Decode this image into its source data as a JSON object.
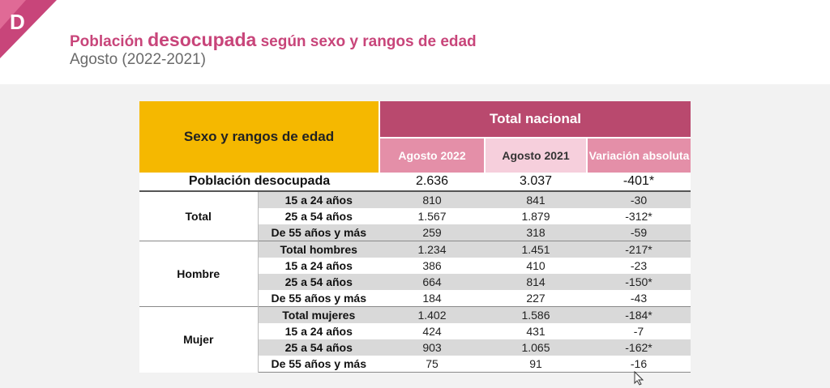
{
  "header": {
    "title_prefix": "Población ",
    "title_emphasis": "desocupada",
    "title_suffix": " según sexo y rangos de edad",
    "subtitle": "Agosto (2022-2021)"
  },
  "colors": {
    "accent_pink": "#c8457a",
    "header_yellow": "#f5b800",
    "header_magenta": "#b9496e",
    "subheader_pink": "#e48fa8",
    "subheader_light": "#f6cfdc",
    "row_gray": "#d9d9d9"
  },
  "table": {
    "col_header": "Sexo y rangos de edad",
    "group_header": "Total nacional",
    "sub_headers": [
      "Agosto 2022",
      "Agosto 2021",
      "Variación absoluta"
    ],
    "poblacion": {
      "label": "Población desocupada",
      "v2022": "2.636",
      "v2021": "3.037",
      "var": "-401*"
    },
    "groups": [
      {
        "name": "Total",
        "rows": [
          {
            "label": "15 a 24 años",
            "v2022": "810",
            "v2021": "841",
            "var": "-30"
          },
          {
            "label": "25 a 54 años",
            "v2022": "1.567",
            "v2021": "1.879",
            "var": "-312*"
          },
          {
            "label": "De 55 años y más",
            "v2022": "259",
            "v2021": "318",
            "var": "-59"
          }
        ]
      },
      {
        "name": "Hombre",
        "rows": [
          {
            "label": "Total hombres",
            "v2022": "1.234",
            "v2021": "1.451",
            "var": "-217*"
          },
          {
            "label": "15 a 24 años",
            "v2022": "386",
            "v2021": "410",
            "var": "-23"
          },
          {
            "label": "25 a 54 años",
            "v2022": "664",
            "v2021": "814",
            "var": "-150*"
          },
          {
            "label": "De 55 años y más",
            "v2022": "184",
            "v2021": "227",
            "var": "-43"
          }
        ]
      },
      {
        "name": "Mujer",
        "rows": [
          {
            "label": "Total mujeres",
            "v2022": "1.402",
            "v2021": "1.586",
            "var": "-184*"
          },
          {
            "label": "15 a 24 años",
            "v2022": "424",
            "v2021": "431",
            "var": "-7"
          },
          {
            "label": "25 a 54 años",
            "v2022": "903",
            "v2021": "1.065",
            "var": "-162*"
          },
          {
            "label": "De 55 años y más",
            "v2022": "75",
            "v2021": "91",
            "var": "-16"
          }
        ]
      }
    ]
  }
}
